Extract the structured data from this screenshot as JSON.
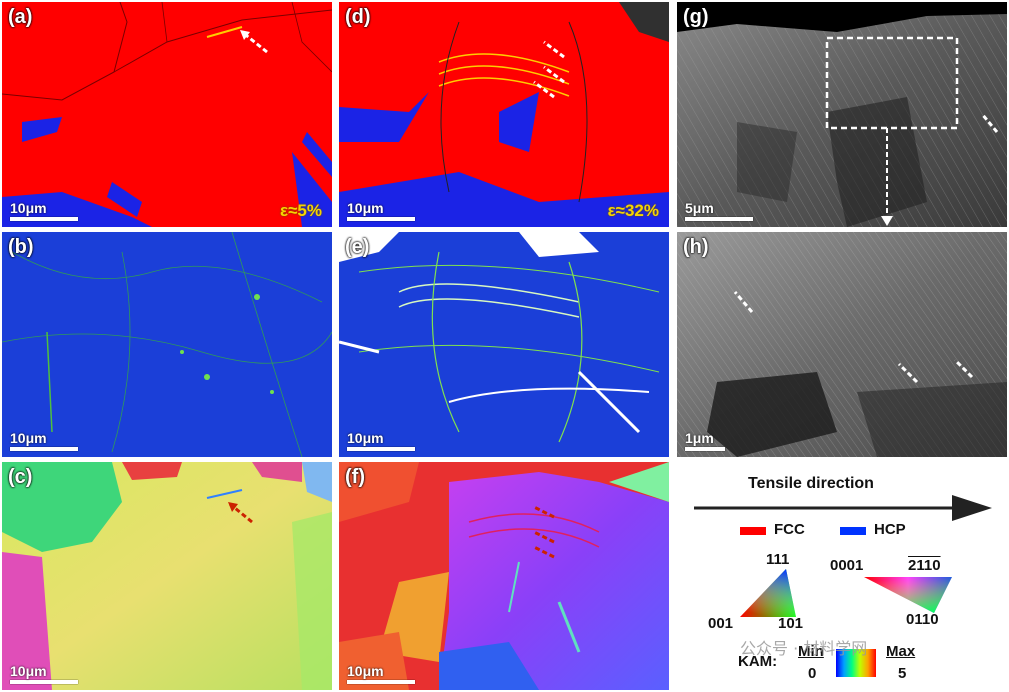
{
  "panels": {
    "a": {
      "label": "(a)",
      "scale": "10μm",
      "strain": "ε≈5%"
    },
    "b": {
      "label": "(b)",
      "scale": "10μm"
    },
    "c": {
      "label": "(c)",
      "scale": "10μm"
    },
    "d": {
      "label": "(d)",
      "scale": "10μm",
      "strain": "ε≈32%"
    },
    "e": {
      "label": "(e)",
      "scale": "10μm"
    },
    "f": {
      "label": "(f)",
      "scale": "10μm"
    },
    "g": {
      "label": "(g)",
      "scale": "5μm"
    },
    "h": {
      "label": "(h)",
      "scale": "1μm"
    }
  },
  "legend": {
    "tensile_direction": "Tensile direction",
    "phases": [
      {
        "name": "FCC",
        "color": "#ff0000"
      },
      {
        "name": "HCP",
        "color": "#0033ff"
      }
    ],
    "ipf_fcc": {
      "top": "111",
      "left": "001",
      "right": "101"
    },
    "ipf_hcp": {
      "left": "0001",
      "right": "2110",
      "bottom": "0110"
    },
    "kam": {
      "title": "KAM:",
      "min_label": "Min",
      "min_value": "0",
      "max_label": "Max",
      "max_value": "5"
    }
  },
  "watermark": "公众号 · 材料学网"
}
